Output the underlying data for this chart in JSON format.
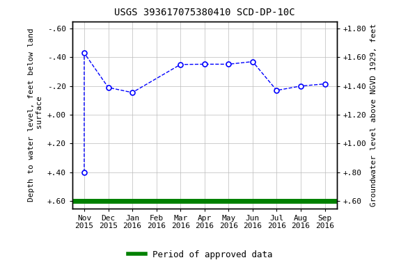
{
  "title": "USGS 393617075380410 SCD-DP-10C",
  "ylabel_left": "Depth to water level, feet below land\n surface",
  "ylabel_right": "Groundwater level above NGVD 1929, feet",
  "x_labels_top": [
    "Nov",
    "Dec",
    "Jan",
    "Feb",
    "Mar",
    "Apr",
    "May",
    "Jun",
    "Jul",
    "Aug",
    "Sep"
  ],
  "x_labels_bot": [
    "2015",
    "2015",
    "2016",
    "2016",
    "2016",
    "2016",
    "2016",
    "2016",
    "2016",
    "2016",
    "2016"
  ],
  "x_positions": [
    0,
    1,
    2,
    3,
    4,
    5,
    6,
    7,
    8,
    9,
    10
  ],
  "line_x": [
    0,
    0,
    1,
    2,
    4,
    5,
    6,
    7,
    8,
    9,
    10
  ],
  "line_y": [
    0.4,
    -0.43,
    -0.19,
    -0.155,
    -0.35,
    -0.352,
    -0.352,
    -0.37,
    -0.17,
    -0.2,
    -0.215
  ],
  "marker_x": [
    0,
    0,
    1,
    2,
    4,
    5,
    6,
    7,
    8,
    9,
    10
  ],
  "marker_y": [
    0.4,
    -0.43,
    -0.19,
    -0.155,
    -0.35,
    -0.352,
    -0.352,
    -0.37,
    -0.17,
    -0.2,
    -0.215
  ],
  "y_ticks_left": [
    0.6,
    0.4,
    0.2,
    0.0,
    -0.2,
    -0.4,
    -0.6
  ],
  "y_tick_labels_left": [
    "+.60",
    "+.40",
    "+.20",
    "+.00",
    "-.20",
    "-.40",
    "-.60"
  ],
  "y_tick_labels_right": [
    "+.60",
    "+.80",
    "+1.00",
    "+1.20",
    "+1.40",
    "+1.60",
    "+1.80"
  ],
  "line_color": "#0000FF",
  "marker_facecolor": "#FFFFFF",
  "green_color": "#008000",
  "legend_label": "Period of approved data",
  "title_fontsize": 10,
  "axis_fontsize": 8,
  "tick_fontsize": 8,
  "legend_fontsize": 9,
  "background_color": "#ffffff",
  "grid_color": "#bbbbbb"
}
